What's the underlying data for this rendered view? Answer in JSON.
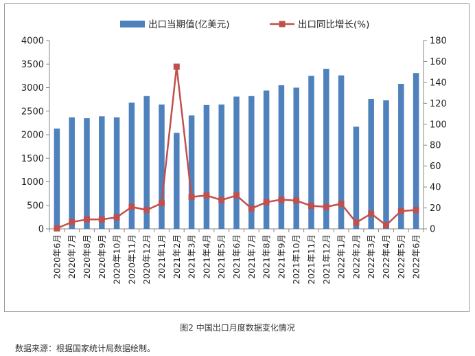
{
  "caption": "图2 中国出口月度数据变化情况",
  "source_note": "数据来源：根据国家统计局数据绘制。",
  "chart_data": {
    "type": "bar+line",
    "legend_position": "top",
    "grid": false,
    "categories": [
      "2020年6月",
      "2020年7月",
      "2020年8月",
      "2020年9月",
      "2020年10月",
      "2020年11月",
      "2020年12月",
      "2021年1月",
      "2021年2月",
      "2021年3月",
      "2021年4月",
      "2021年5月",
      "2021年6月",
      "2021年7月",
      "2021年8月",
      "2021年9月",
      "2021年10月",
      "2021年11月",
      "2021年12月",
      "2022年1月",
      "2022年2月",
      "2022年3月",
      "2022年4月",
      "2022年5月",
      "2022年6月"
    ],
    "series": [
      {
        "name": "出口当期值(亿美元)",
        "type": "bar",
        "axis": "left",
        "color": "#4f81bd",
        "values": [
          2130,
          2370,
          2350,
          2390,
          2370,
          2680,
          2820,
          2640,
          2040,
          2410,
          2630,
          2640,
          2810,
          2820,
          2940,
          3050,
          3000,
          3250,
          3400,
          3260,
          2170,
          2760,
          2730,
          3080,
          3310
        ]
      },
      {
        "name": "出口同比增长(%)",
        "type": "line",
        "axis": "right",
        "color": "#c0504d",
        "values": [
          0.5,
          6.5,
          9,
          9,
          11,
          21,
          18,
          24.5,
          155,
          30.5,
          32,
          27.5,
          32,
          19.5,
          25.5,
          28,
          27,
          22,
          21,
          24,
          6,
          14.5,
          3.5,
          17,
          18
        ]
      }
    ],
    "y_left": {
      "min": 0,
      "max": 4000,
      "ticks": [
        0,
        500,
        1000,
        1500,
        2000,
        2500,
        3000,
        3500,
        4000
      ]
    },
    "y_right": {
      "min": 0,
      "max": 180,
      "ticks": [
        0,
        20,
        40,
        60,
        80,
        100,
        120,
        140,
        160,
        180
      ]
    }
  }
}
